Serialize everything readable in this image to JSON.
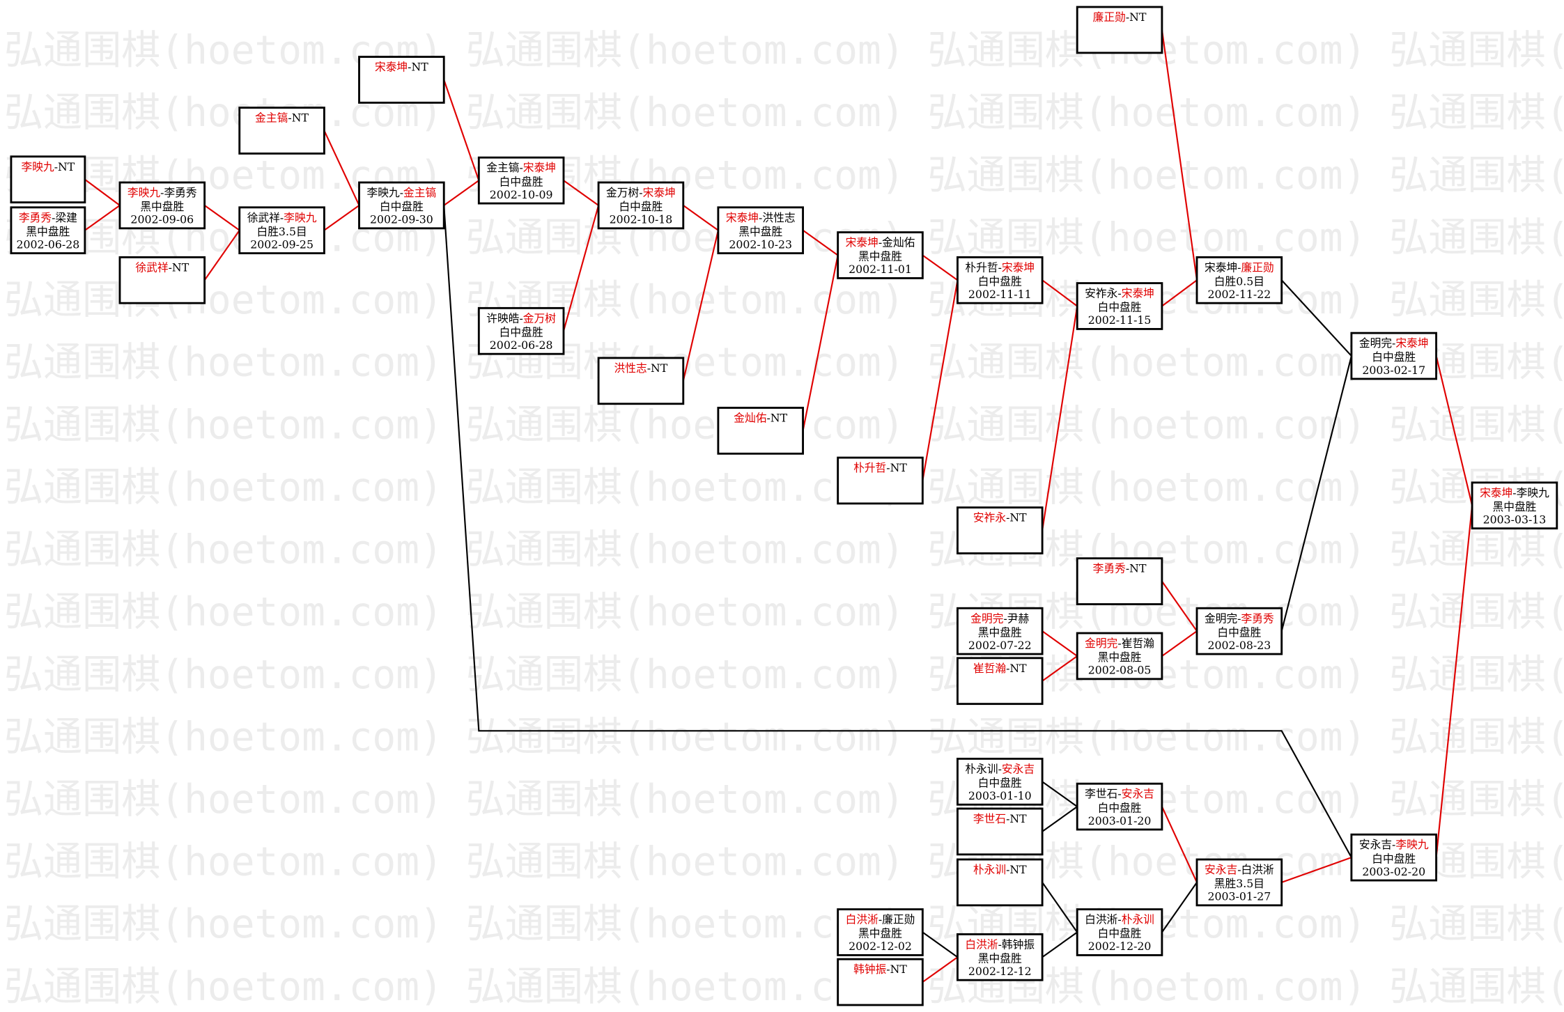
{
  "watermark": "弘通围棋(hoetom.com)",
  "nodes": [
    {
      "title": [
        {
          "text": "李映九",
          "color": "#e00000"
        },
        {
          "text": "-NT",
          "color": "#000000"
        }
      ]
    },
    {
      "title": [
        {
          "text": "李勇秀",
          "color": "#e00000"
        },
        {
          "text": "-梁建",
          "color": "#000000"
        }
      ],
      "result": "黑中盘胜",
      "date": "2002-06-28"
    },
    {
      "title": [
        {
          "text": "李映九",
          "color": "#e00000"
        },
        {
          "text": "-李勇秀",
          "color": "#000000"
        }
      ],
      "result": "黑中盘胜",
      "date": "2002-09-06"
    },
    {
      "title": [
        {
          "text": "徐武祥",
          "color": "#e00000"
        },
        {
          "text": "-NT",
          "color": "#000000"
        }
      ]
    },
    {
      "title": [
        {
          "text": "金主镐",
          "color": "#e00000"
        },
        {
          "text": "-NT",
          "color": "#000000"
        }
      ]
    },
    {
      "title": [
        {
          "text": "徐武祥-",
          "color": "#000000"
        },
        {
          "text": "李映九",
          "color": "#e00000"
        }
      ],
      "result": "白胜3.5目",
      "date": "2002-09-25"
    },
    {
      "title": [
        {
          "text": "宋泰坤",
          "color": "#e00000"
        },
        {
          "text": "-NT",
          "color": "#000000"
        }
      ]
    },
    {
      "title": [
        {
          "text": "李映九-",
          "color": "#000000"
        },
        {
          "text": "金主镐",
          "color": "#e00000"
        }
      ],
      "result": "白中盘胜",
      "date": "2002-09-30"
    },
    {
      "title": [
        {
          "text": "金主镐-",
          "color": "#000000"
        },
        {
          "text": "宋泰坤",
          "color": "#e00000"
        }
      ],
      "result": "白中盘胜",
      "date": "2002-10-09"
    },
    {
      "title": [
        {
          "text": "许映皓-",
          "color": "#000000"
        },
        {
          "text": "金万树",
          "color": "#e00000"
        }
      ],
      "result": "白中盘胜",
      "date": "2002-06-28"
    },
    {
      "title": [
        {
          "text": "金万树-",
          "color": "#000000"
        },
        {
          "text": "宋泰坤",
          "color": "#e00000"
        }
      ],
      "result": "白中盘胜",
      "date": "2002-10-18"
    },
    {
      "title": [
        {
          "text": "洪性志",
          "color": "#e00000"
        },
        {
          "text": "-NT",
          "color": "#000000"
        }
      ]
    },
    {
      "title": [
        {
          "text": "宋泰坤",
          "color": "#e00000"
        },
        {
          "text": "-洪性志",
          "color": "#000000"
        }
      ],
      "result": "黑中盘胜",
      "date": "2002-10-23"
    },
    {
      "title": [
        {
          "text": "金灿佑",
          "color": "#e00000"
        },
        {
          "text": "-NT",
          "color": "#000000"
        }
      ]
    },
    {
      "title": [
        {
          "text": "宋泰坤",
          "color": "#e00000"
        },
        {
          "text": "-金灿佑",
          "color": "#000000"
        }
      ],
      "result": "黑中盘胜",
      "date": "2002-11-01"
    },
    {
      "title": [
        {
          "text": "朴升哲",
          "color": "#e00000"
        },
        {
          "text": "-NT",
          "color": "#000000"
        }
      ]
    },
    {
      "title": [
        {
          "text": "朴升哲-",
          "color": "#000000"
        },
        {
          "text": "宋泰坤",
          "color": "#e00000"
        }
      ],
      "result": "白中盘胜",
      "date": "2002-11-11"
    },
    {
      "title": [
        {
          "text": "安祚永",
          "color": "#e00000"
        },
        {
          "text": "-NT",
          "color": "#000000"
        }
      ]
    },
    {
      "title": [
        {
          "text": "安祚永-",
          "color": "#000000"
        },
        {
          "text": "宋泰坤",
          "color": "#e00000"
        }
      ],
      "result": "白中盘胜",
      "date": "2002-11-15"
    },
    {
      "title": [
        {
          "text": "廉正勋",
          "color": "#e00000"
        },
        {
          "text": "-NT",
          "color": "#000000"
        }
      ]
    },
    {
      "title": [
        {
          "text": "宋泰坤-",
          "color": "#000000"
        },
        {
          "text": "廉正勋",
          "color": "#e00000"
        }
      ],
      "result": "白胜0.5目",
      "date": "2002-11-22"
    },
    {
      "title": [
        {
          "text": "李勇秀",
          "color": "#e00000"
        },
        {
          "text": "-NT",
          "color": "#000000"
        }
      ]
    },
    {
      "title": [
        {
          "text": "金明完",
          "color": "#e00000"
        },
        {
          "text": "-尹赫",
          "color": "#000000"
        }
      ],
      "result": "黑中盘胜",
      "date": "2002-07-22"
    },
    {
      "title": [
        {
          "text": "崔哲瀚",
          "color": "#e00000"
        },
        {
          "text": "-NT",
          "color": "#000000"
        }
      ]
    },
    {
      "title": [
        {
          "text": "金明完",
          "color": "#e00000"
        },
        {
          "text": "-崔哲瀚",
          "color": "#000000"
        }
      ],
      "result": "黑中盘胜",
      "date": "2002-08-05"
    },
    {
      "title": [
        {
          "text": "金明完-",
          "color": "#000000"
        },
        {
          "text": "李勇秀",
          "color": "#e00000"
        }
      ],
      "result": "白中盘胜",
      "date": "2002-08-23"
    },
    {
      "title": [
        {
          "text": "金明完-",
          "color": "#000000"
        },
        {
          "text": "宋泰坤",
          "color": "#e00000"
        }
      ],
      "result": "白中盘胜",
      "date": "2003-02-17"
    },
    {
      "title": [
        {
          "text": "宋泰坤",
          "color": "#e00000"
        },
        {
          "text": "-李映九",
          "color": "#000000"
        }
      ],
      "result": "黑中盘胜",
      "date": "2003-03-13"
    },
    {
      "title": [
        {
          "text": "朴永训-",
          "color": "#000000"
        },
        {
          "text": "安永吉",
          "color": "#e00000"
        }
      ],
      "result": "白中盘胜",
      "date": "2003-01-10"
    },
    {
      "title": [
        {
          "text": "李世石",
          "color": "#e00000"
        },
        {
          "text": "-NT",
          "color": "#000000"
        }
      ]
    },
    {
      "title": [
        {
          "text": "李世石-",
          "color": "#000000"
        },
        {
          "text": "安永吉",
          "color": "#e00000"
        }
      ],
      "result": "白中盘胜",
      "date": "2003-01-20"
    },
    {
      "title": [
        {
          "text": "朴永训",
          "color": "#e00000"
        },
        {
          "text": "-NT",
          "color": "#000000"
        }
      ]
    },
    {
      "title": [
        {
          "text": "白洪淅",
          "color": "#e00000"
        },
        {
          "text": "-廉正勋",
          "color": "#000000"
        }
      ],
      "result": "黑中盘胜",
      "date": "2002-12-02"
    },
    {
      "title": [
        {
          "text": "韩钟振",
          "color": "#e00000"
        },
        {
          "text": "-NT",
          "color": "#000000"
        }
      ]
    },
    {
      "title": [
        {
          "text": "白洪淅",
          "color": "#e00000"
        },
        {
          "text": "-韩钟振",
          "color": "#000000"
        }
      ],
      "result": "黑中盘胜",
      "date": "2002-12-12"
    },
    {
      "title": [
        {
          "text": "白洪淅-",
          "color": "#000000"
        },
        {
          "text": "朴永训",
          "color": "#e00000"
        }
      ],
      "result": "白中盘胜",
      "date": "2002-12-20"
    },
    {
      "title": [
        {
          "text": "安永吉",
          "color": "#e00000"
        },
        {
          "text": "-白洪淅",
          "color": "#000000"
        }
      ],
      "result": "黑胜3.5目",
      "date": "2003-01-27"
    },
    {
      "title": [
        {
          "text": "安永吉-",
          "color": "#000000"
        },
        {
          "text": "李映九",
          "color": "#e00000"
        }
      ],
      "result": "白中盘胜",
      "date": "2003-02-20"
    }
  ]
}
